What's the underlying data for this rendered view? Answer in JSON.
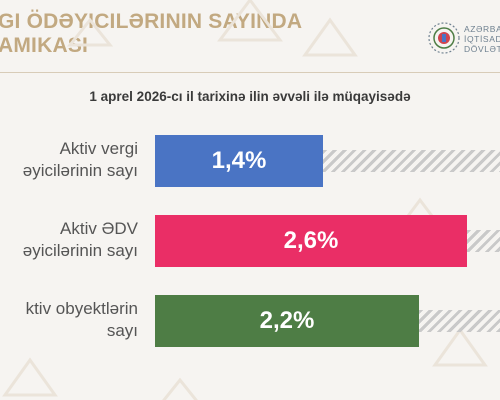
{
  "header": {
    "title_line1": "GI ÖDƏYICILƏRININ SAYINDA",
    "title_line2": "AMIKASI",
    "logo_lines": [
      "AZƏRBA",
      "İQTİSAD",
      "DÖVLƏT"
    ]
  },
  "subtitle": "1 aprel 2026-cı il tarixinə ilin əvvəli ilə müqayisədə",
  "colors": {
    "accent": "#c2a981",
    "bar1": "#4a74c4",
    "bar2": "#ea2e66",
    "bar3": "#4e7d45",
    "hatch": "#c9c9c9"
  },
  "chart_data": {
    "type": "bar",
    "orientation": "horizontal",
    "title": "1 aprel 2026-cı il tarixinə ilin əvvəli ilə müqayisədə",
    "categories": [
      [
        "Aktiv vergi",
        "əyicilərinin sayı"
      ],
      [
        "Aktiv ƏDV",
        "əyicilərinin sayı"
      ],
      [
        "ktiv obyektlərin",
        "sayı"
      ]
    ],
    "values": [
      1.4,
      2.6,
      2.2
    ],
    "value_labels": [
      "1,4%",
      "2,6%",
      "2,2%"
    ],
    "unit": "%"
  }
}
